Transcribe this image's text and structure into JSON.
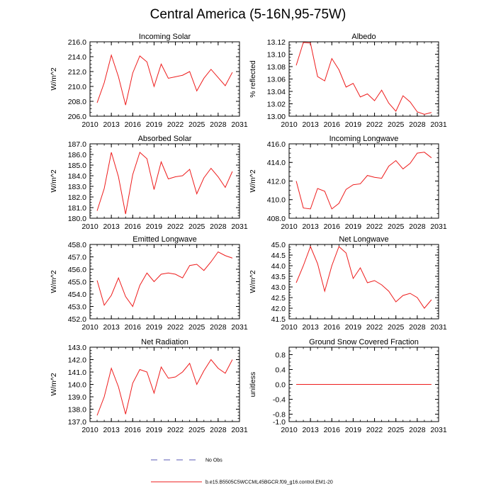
{
  "figure": {
    "title": "Central America (5-16N,95-75W)"
  },
  "legend": {
    "obs_label": "No Obs",
    "obs_color": "#5a5ab4",
    "model_label": "b.e15.B5505C5WCCML45BGCR.f09_g16.control.EM1-20",
    "model_color": "#ee1c1c"
  },
  "chart_data": [
    {
      "type": "line",
      "title": "Incoming Solar",
      "xlabel": "",
      "ylabel": "W/m^2",
      "xlim": [
        2010,
        2031
      ],
      "ylim": [
        206,
        216
      ],
      "xticks": [
        "2010",
        "2013",
        "2016",
        "2019",
        "2022",
        "2025",
        "2028",
        "2031"
      ],
      "yticks": [
        "206.0",
        "208.0",
        "210.0",
        "212.0",
        "214.0",
        "216.0"
      ],
      "x": [
        2011,
        2012,
        2013,
        2014,
        2015,
        2016,
        2017,
        2018,
        2019,
        2020,
        2021,
        2022,
        2023,
        2024,
        2025,
        2026,
        2027,
        2028,
        2029,
        2030
      ],
      "series": [
        {
          "name": "b.e15.B5505C5WCCML45BGCR.f09_g16.control.EM1-20",
          "color": "#ee1c1c",
          "values": [
            207.8,
            210.5,
            214.2,
            211.3,
            207.5,
            211.8,
            214.1,
            213.3,
            210.0,
            213.0,
            211.1,
            211.3,
            211.5,
            212.0,
            209.4,
            211.1,
            212.3,
            211.2,
            210.1,
            211.9
          ]
        }
      ]
    },
    {
      "type": "line",
      "title": "Albedo",
      "xlabel": "",
      "ylabel": "% reflected",
      "xlim": [
        2010,
        2031
      ],
      "ylim": [
        13.0,
        13.12
      ],
      "xticks": [
        "2010",
        "2013",
        "2016",
        "2019",
        "2022",
        "2025",
        "2028",
        "2031"
      ],
      "yticks": [
        "13.00",
        "13.02",
        "13.04",
        "13.06",
        "13.08",
        "13.10",
        "13.12"
      ],
      "x": [
        2011,
        2012,
        2013,
        2014,
        2015,
        2016,
        2017,
        2018,
        2019,
        2020,
        2021,
        2022,
        2023,
        2024,
        2025,
        2026,
        2027,
        2028,
        2029,
        2030
      ],
      "series": [
        {
          "name": "b.e15.B5505C5WCCML45BGCR.f09_g16.control.EM1-20",
          "color": "#ee1c1c",
          "values": [
            13.082,
            13.119,
            13.118,
            13.064,
            13.057,
            13.093,
            13.075,
            13.047,
            13.053,
            13.031,
            13.036,
            13.025,
            13.042,
            13.021,
            13.008,
            13.033,
            13.023,
            13.007,
            13.003,
            13.006
          ]
        }
      ]
    },
    {
      "type": "line",
      "title": "Absorbed Solar",
      "xlabel": "",
      "ylabel": "W/m^2",
      "xlim": [
        2010,
        2031
      ],
      "ylim": [
        180,
        187
      ],
      "xticks": [
        "2010",
        "2013",
        "2016",
        "2019",
        "2022",
        "2025",
        "2028",
        "2031"
      ],
      "yticks": [
        "180.0",
        "181.0",
        "182.0",
        "183.0",
        "184.0",
        "185.0",
        "186.0",
        "187.0"
      ],
      "x": [
        2011,
        2012,
        2013,
        2014,
        2015,
        2016,
        2017,
        2018,
        2019,
        2020,
        2021,
        2022,
        2023,
        2024,
        2025,
        2026,
        2027,
        2028,
        2029,
        2030
      ],
      "series": [
        {
          "name": "b.e15.B5505C5WCCML45BGCR.f09_g16.control.EM1-20",
          "color": "#ee1c1c",
          "values": [
            180.7,
            182.8,
            186.2,
            183.9,
            180.4,
            184.1,
            186.2,
            185.6,
            182.7,
            185.3,
            183.7,
            183.9,
            184.0,
            184.6,
            182.3,
            183.8,
            184.7,
            183.9,
            182.9,
            184.4
          ]
        }
      ]
    },
    {
      "type": "line",
      "title": "Incoming Longwave",
      "xlabel": "",
      "ylabel": "W/m^2",
      "xlim": [
        2010,
        2031
      ],
      "ylim": [
        408,
        416
      ],
      "xticks": [
        "2010",
        "2013",
        "2016",
        "2019",
        "2022",
        "2025",
        "2028",
        "2031"
      ],
      "yticks": [
        "408.0",
        "410.0",
        "412.0",
        "414.0",
        "416.0"
      ],
      "x": [
        2011,
        2012,
        2013,
        2014,
        2015,
        2016,
        2017,
        2018,
        2019,
        2020,
        2021,
        2022,
        2023,
        2024,
        2025,
        2026,
        2027,
        2028,
        2029,
        2030
      ],
      "series": [
        {
          "name": "b.e15.B5505C5WCCML45BGCR.f09_g16.control.EM1-20",
          "color": "#ee1c1c",
          "values": [
            412.0,
            409.1,
            409.0,
            411.2,
            410.9,
            409.0,
            409.6,
            411.1,
            411.6,
            411.7,
            412.6,
            412.4,
            412.3,
            413.6,
            414.2,
            413.3,
            413.9,
            415.0,
            415.1,
            414.5
          ]
        }
      ]
    },
    {
      "type": "line",
      "title": "Emitted Longwave",
      "xlabel": "",
      "ylabel": "W/m^2",
      "xlim": [
        2010,
        2031
      ],
      "ylim": [
        452,
        458
      ],
      "xticks": [
        "2010",
        "2013",
        "2016",
        "2019",
        "2022",
        "2025",
        "2028",
        "2031"
      ],
      "yticks": [
        "452.0",
        "453.0",
        "454.0",
        "455.0",
        "456.0",
        "457.0",
        "458.0"
      ],
      "x": [
        2011,
        2012,
        2013,
        2014,
        2015,
        2016,
        2017,
        2018,
        2019,
        2020,
        2021,
        2022,
        2023,
        2024,
        2025,
        2026,
        2027,
        2028,
        2029,
        2030
      ],
      "series": [
        {
          "name": "b.e15.B5505C5WCCML45BGCR.f09_g16.control.EM1-20",
          "color": "#ee1c1c",
          "values": [
            455.1,
            453.1,
            453.9,
            455.3,
            453.8,
            453.0,
            454.7,
            455.7,
            455.0,
            455.6,
            455.7,
            455.6,
            455.3,
            456.3,
            456.4,
            455.9,
            456.6,
            457.4,
            457.1,
            456.9
          ]
        }
      ]
    },
    {
      "type": "line",
      "title": "Net Longwave",
      "xlabel": "",
      "ylabel": "W/m^2",
      "xlim": [
        2010,
        2031
      ],
      "ylim": [
        41.5,
        45
      ],
      "xticks": [
        "2010",
        "2013",
        "2016",
        "2019",
        "2022",
        "2025",
        "2028",
        "2031"
      ],
      "yticks": [
        "41.5",
        "42.0",
        "42.5",
        "43.0",
        "43.5",
        "44.0",
        "44.5",
        "45.0"
      ],
      "x": [
        2011,
        2012,
        2013,
        2014,
        2015,
        2016,
        2017,
        2018,
        2019,
        2020,
        2021,
        2022,
        2023,
        2024,
        2025,
        2026,
        2027,
        2028,
        2029,
        2030
      ],
      "series": [
        {
          "name": "b.e15.B5505C5WCCML45BGCR.f09_g16.control.EM1-20",
          "color": "#ee1c1c",
          "values": [
            43.2,
            44.0,
            44.9,
            44.1,
            42.8,
            44.0,
            44.9,
            44.6,
            43.4,
            43.9,
            43.2,
            43.3,
            43.1,
            42.8,
            42.3,
            42.6,
            42.7,
            42.5,
            42.0,
            42.4
          ]
        }
      ]
    },
    {
      "type": "line",
      "title": "Net Radiation",
      "xlabel": "",
      "ylabel": "W/m^2",
      "xlim": [
        2010,
        2031
      ],
      "ylim": [
        137,
        143
      ],
      "xticks": [
        "2010",
        "2013",
        "2016",
        "2019",
        "2022",
        "2025",
        "2028",
        "2031"
      ],
      "yticks": [
        "137.0",
        "138.0",
        "139.0",
        "140.0",
        "141.0",
        "142.0",
        "143.0"
      ],
      "x": [
        2011,
        2012,
        2013,
        2014,
        2015,
        2016,
        2017,
        2018,
        2019,
        2020,
        2021,
        2022,
        2023,
        2024,
        2025,
        2026,
        2027,
        2028,
        2029,
        2030
      ],
      "series": [
        {
          "name": "b.e15.B5505C5WCCML45BGCR.f09_g16.control.EM1-20",
          "color": "#ee1c1c",
          "values": [
            137.5,
            139.0,
            141.3,
            139.8,
            137.6,
            140.1,
            141.2,
            141.0,
            139.3,
            141.4,
            140.5,
            140.6,
            141.0,
            141.7,
            140.0,
            141.1,
            142.0,
            141.3,
            140.9,
            142.0
          ]
        }
      ]
    },
    {
      "type": "line",
      "title": "Ground Snow Covered Fraction",
      "xlabel": "",
      "ylabel": "unitless",
      "xlim": [
        2010,
        2031
      ],
      "ylim": [
        -1,
        1
      ],
      "xticks": [
        "2010",
        "2013",
        "2016",
        "2019",
        "2022",
        "2025",
        "2028",
        "2031"
      ],
      "yticks": [
        "-1.0",
        "-0.8",
        "-0.4",
        "0.0",
        "0.4",
        "0.8"
      ],
      "x": [
        2011,
        2012,
        2013,
        2014,
        2015,
        2016,
        2017,
        2018,
        2019,
        2020,
        2021,
        2022,
        2023,
        2024,
        2025,
        2026,
        2027,
        2028,
        2029,
        2030
      ],
      "series": [
        {
          "name": "b.e15.B5505C5WCCML45BGCR.f09_g16.control.EM1-20",
          "color": "#ee1c1c",
          "values": [
            0,
            0,
            0,
            0,
            0,
            0,
            0,
            0,
            0,
            0,
            0,
            0,
            0,
            0,
            0,
            0,
            0,
            0,
            0,
            0
          ]
        }
      ]
    }
  ]
}
